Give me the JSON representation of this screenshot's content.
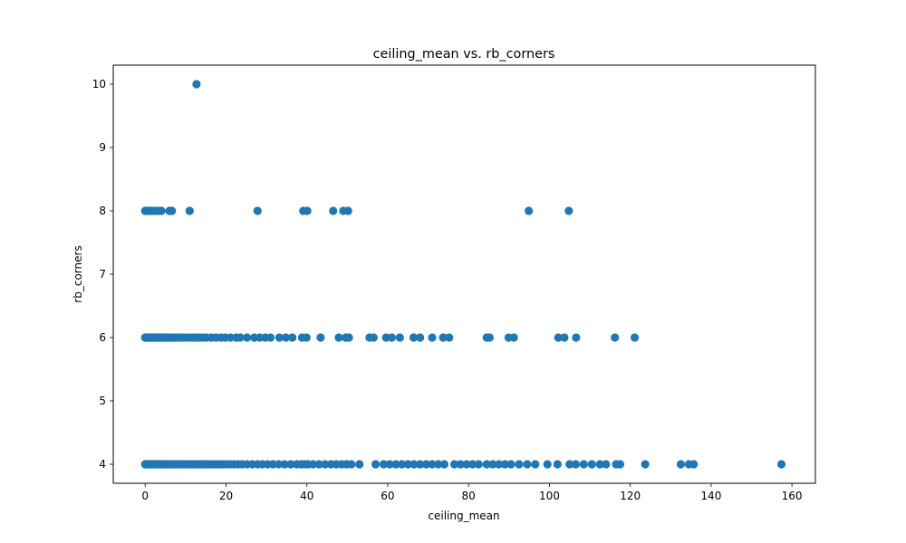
{
  "chart_data": {
    "type": "scatter",
    "title": "ceiling_mean vs. rb_corners",
    "xlabel": "ceiling_mean",
    "ylabel": "rb_corners",
    "xlim": [
      -7.9,
      165.8
    ],
    "ylim": [
      3.7,
      10.3
    ],
    "xticks": [
      0,
      20,
      40,
      60,
      80,
      100,
      120,
      140,
      160
    ],
    "yticks": [
      4,
      5,
      6,
      7,
      8,
      9,
      10
    ],
    "xtick_labels": [
      "0",
      "20",
      "40",
      "60",
      "80",
      "100",
      "120",
      "140",
      "160"
    ],
    "ytick_labels": [
      "4",
      "5",
      "6",
      "7",
      "8",
      "9",
      "10"
    ],
    "grid": false,
    "marker_color": "#1f77b4",
    "series": [
      {
        "y": 10,
        "x": [
          12.7
        ]
      },
      {
        "y": 8,
        "x": [
          0.0,
          0.3,
          0.7,
          1.3,
          2.0,
          2.5,
          3.1,
          4.0,
          6.0,
          6.6,
          11.0,
          27.8,
          39.1,
          40.1,
          46.5,
          49.0,
          50.2,
          94.9,
          104.8
        ]
      },
      {
        "y": 6,
        "x": [
          0.0,
          0.2,
          0.4,
          0.6,
          0.8,
          1.0,
          1.2,
          1.4,
          1.6,
          1.8,
          2.0,
          2.2,
          2.5,
          2.8,
          3.1,
          3.4,
          3.7,
          4.0,
          4.4,
          4.8,
          5.2,
          5.7,
          6.2,
          6.8,
          7.4,
          8.0,
          8.7,
          9.5,
          10.3,
          11.2,
          12.0,
          12.8,
          13.5,
          14.3,
          15.2,
          16.4,
          17.5,
          18.7,
          19.8,
          21.1,
          22.5,
          23.5,
          25.2,
          27.0,
          28.3,
          29.7,
          31.0,
          33.2,
          34.8,
          36.4,
          38.8,
          39.9,
          43.4,
          47.9,
          49.6,
          50.4,
          55.5,
          56.5,
          59.6,
          61.0,
          63.0,
          66.4,
          68.0,
          71.0,
          73.7,
          75.2,
          84.5,
          85.2,
          89.9,
          91.2,
          102.2,
          103.7,
          106.6,
          116.2,
          121.1
        ]
      },
      {
        "y": 4,
        "x": [
          0.0,
          0.3,
          0.6,
          0.9,
          1.2,
          1.5,
          1.8,
          2.1,
          2.4,
          2.7,
          3.0,
          3.4,
          3.8,
          4.2,
          4.6,
          5.0,
          5.5,
          6.0,
          6.5,
          7.0,
          7.5,
          8.0,
          8.6,
          9.2,
          9.8,
          10.4,
          11.0,
          11.7,
          12.4,
          13.1,
          13.8,
          14.5,
          15.2,
          16.0,
          16.8,
          17.6,
          18.4,
          19.2,
          20.1,
          21.0,
          22.0,
          23.0,
          24.0,
          25.2,
          26.5,
          27.8,
          29.0,
          30.3,
          31.6,
          33.0,
          34.5,
          36.0,
          37.5,
          38.6,
          39.4,
          40.3,
          41.5,
          43.0,
          44.5,
          46.0,
          47.3,
          48.6,
          49.8,
          51.0,
          53.0,
          57.0,
          59.0,
          60.5,
          62.0,
          63.5,
          65.0,
          66.5,
          68.0,
          69.5,
          71.0,
          72.5,
          74.0,
          76.5,
          78.0,
          79.5,
          81.0,
          82.5,
          84.5,
          86.0,
          87.5,
          89.0,
          90.5,
          92.5,
          94.5,
          96.5,
          99.5,
          102.0,
          105.0,
          106.5,
          108.5,
          110.5,
          112.5,
          114.0,
          116.5,
          117.5,
          123.7,
          132.5,
          134.5,
          135.7,
          157.4
        ]
      }
    ]
  }
}
